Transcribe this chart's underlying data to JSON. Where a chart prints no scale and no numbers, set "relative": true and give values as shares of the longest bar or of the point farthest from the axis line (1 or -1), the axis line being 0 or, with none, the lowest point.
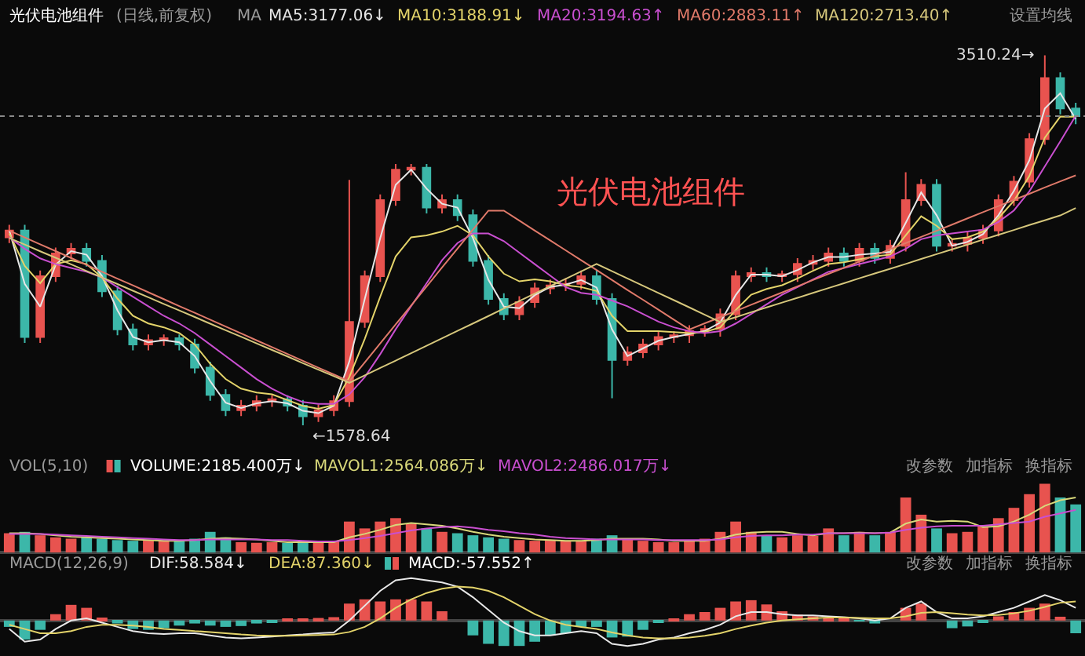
{
  "chart_data": [
    {
      "type": "candlestick",
      "title": "光伏电池组件",
      "tick_labels": false,
      "categories": [
        null,
        null,
        null,
        null,
        null,
        null,
        null,
        null,
        null,
        null,
        null,
        null,
        null,
        null,
        null,
        null,
        null,
        null,
        null,
        null,
        null,
        null,
        null,
        null,
        null,
        null,
        null,
        null,
        null,
        null,
        null,
        null,
        null,
        null,
        null,
        null,
        null,
        null,
        null,
        null,
        null,
        null,
        null,
        null,
        null,
        null,
        null,
        null,
        null,
        null,
        null,
        null,
        null,
        null,
        null,
        null,
        null,
        null,
        null,
        null,
        null,
        null,
        null,
        null,
        null,
        null,
        null,
        null,
        null,
        null
      ],
      "ohlc": [
        [
          2560,
          2625,
          2530,
          2595
        ],
        [
          2595,
          2625,
          2009,
          2039
        ],
        [
          2039,
          2387,
          2009,
          2357
        ],
        [
          2357,
          2506,
          2327,
          2476
        ],
        [
          2476,
          2530,
          2446,
          2500
        ],
        [
          2500,
          2530,
          2407,
          2437
        ],
        [
          2437,
          2467,
          2248,
          2278
        ],
        [
          2278,
          2308,
          2049,
          2079
        ],
        [
          2079,
          2109,
          1970,
          2000
        ],
        [
          2000,
          2053,
          1970,
          2023
        ],
        [
          2023,
          2053,
          1993,
          2033
        ],
        [
          2033,
          2053,
          1970,
          2000
        ],
        [
          2000,
          2030,
          1850,
          1880
        ],
        [
          1880,
          1910,
          1707,
          1737
        ],
        [
          1737,
          1767,
          1627,
          1657
        ],
        [
          1657,
          1711,
          1627,
          1681
        ],
        [
          1681,
          1735,
          1651,
          1705
        ],
        [
          1705,
          1735,
          1675,
          1715
        ],
        [
          1715,
          1735,
          1651,
          1681
        ],
        [
          1681,
          1711,
          1578.64,
          1626
        ],
        [
          1626,
          1687,
          1596,
          1657
        ],
        [
          1657,
          1735,
          1627,
          1705
        ],
        [
          1705,
          2860,
          1675,
          2118
        ],
        [
          2118,
          2387,
          2088,
          2357
        ],
        [
          2357,
          2784,
          2327,
          2754
        ],
        [
          2754,
          2943,
          2724,
          2913
        ],
        [
          2913,
          2943,
          2883,
          2923
        ],
        [
          2923,
          2943,
          2685,
          2715
        ],
        [
          2715,
          2784,
          2685,
          2754
        ],
        [
          2754,
          2784,
          2645,
          2675
        ],
        [
          2675,
          2705,
          2407,
          2437
        ],
        [
          2437,
          2467,
          2208,
          2238
        ],
        [
          2238,
          2268,
          2128,
          2158
        ],
        [
          2158,
          2252,
          2128,
          2222
        ],
        [
          2222,
          2323,
          2192,
          2293
        ],
        [
          2293,
          2339,
          2263,
          2309
        ],
        [
          2309,
          2347,
          2279,
          2317
        ],
        [
          2317,
          2387,
          2287,
          2357
        ],
        [
          2357,
          2387,
          2208,
          2238
        ],
        [
          2238,
          2268,
          1720,
          1920
        ],
        [
          1920,
          1990,
          1890,
          1960
        ],
        [
          1960,
          2030,
          1930,
          2000
        ],
        [
          2000,
          2069,
          1970,
          2039
        ],
        [
          2039,
          2069,
          2009,
          2049
        ],
        [
          2049,
          2101,
          2009,
          2071
        ],
        [
          2071,
          2101,
          2041,
          2081
        ],
        [
          2081,
          2188,
          2041,
          2158
        ],
        [
          2158,
          2387,
          2128,
          2357
        ],
        [
          2357,
          2403,
          2327,
          2373
        ],
        [
          2373,
          2403,
          2327,
          2357
        ],
        [
          2357,
          2387,
          2327,
          2367
        ],
        [
          2367,
          2451,
          2327,
          2421
        ],
        [
          2421,
          2467,
          2391,
          2437
        ],
        [
          2437,
          2506,
          2407,
          2476
        ],
        [
          2476,
          2506,
          2407,
          2437
        ],
        [
          2437,
          2530,
          2407,
          2500
        ],
        [
          2500,
          2530,
          2422,
          2452
        ],
        [
          2452,
          2546,
          2422,
          2516
        ],
        [
          2516,
          2900,
          2486,
          2754
        ],
        [
          2754,
          2864,
          2724,
          2834
        ],
        [
          2834,
          2864,
          2486,
          2516
        ],
        [
          2516,
          2546,
          2486,
          2526
        ],
        [
          2526,
          2586,
          2486,
          2556
        ],
        [
          2556,
          2625,
          2526,
          2595
        ],
        [
          2595,
          2784,
          2565,
          2754
        ],
        [
          2754,
          2880,
          2724,
          2850
        ],
        [
          2850,
          3103,
          2820,
          3073
        ],
        [
          3073,
          3510.24,
          3043,
          3391
        ],
        [
          3391,
          3421,
          3202,
          3232
        ],
        [
          3232,
          3262,
          3150,
          3192
        ]
      ],
      "colors": [
        "#e8534f",
        "#3cb7a9",
        "#e8534f",
        "#e8534f",
        "#e8534f",
        "#3cb7a9",
        "#3cb7a9",
        "#3cb7a9",
        "#3cb7a9",
        "#e8534f",
        "#e8534f",
        "#3cb7a9",
        "#3cb7a9",
        "#3cb7a9",
        "#3cb7a9",
        "#e8534f",
        "#e8534f",
        "#e8534f",
        "#3cb7a9",
        "#3cb7a9",
        "#e8534f",
        "#e8534f",
        "#e8534f",
        "#e8534f",
        "#e8534f",
        "#e8534f",
        "#e8534f",
        "#3cb7a9",
        "#e8534f",
        "#3cb7a9",
        "#3cb7a9",
        "#3cb7a9",
        "#3cb7a9",
        "#e8534f",
        "#e8534f",
        "#e8534f",
        "#e8534f",
        "#e8534f",
        "#3cb7a9",
        "#3cb7a9",
        "#e8534f",
        "#e8534f",
        "#e8534f",
        "#e8534f",
        "#e8534f",
        "#e8534f",
        "#e8534f",
        "#e8534f",
        "#e8534f",
        "#3cb7a9",
        "#e8534f",
        "#e8534f",
        "#e8534f",
        "#e8534f",
        "#3cb7a9",
        "#e8534f",
        "#3cb7a9",
        "#e8534f",
        "#e8534f",
        "#e8534f",
        "#3cb7a9",
        "#e8534f",
        "#e8534f",
        "#e8534f",
        "#e8534f",
        "#e8534f",
        "#e8534f",
        "#e8534f",
        "#3cb7a9",
        "#3cb7a9"
      ],
      "series": [
        {
          "type": "line",
          "name": "MA5:3177.06↓",
          "color": "#e6e6e6",
          "values": [
            2595,
            2317,
            2198,
            2417,
            2488,
            2469,
            2358,
            2179,
            2040,
            2012,
            2023,
            2012,
            1940,
            1809,
            1697,
            1669,
            1693,
            1705,
            1693,
            1654,
            1642,
            1681,
            1912,
            2238,
            2556,
            2834,
            2913,
            2814,
            2735,
            2715,
            2556,
            2338,
            2198,
            2190,
            2258,
            2301,
            2313,
            2337,
            2298,
            2079,
            1940,
            1980,
            2020,
            2039,
            2055,
            2071,
            2115,
            2258,
            2365,
            2365,
            2357,
            2389,
            2429,
            2457,
            2457,
            2469,
            2476,
            2484,
            2635,
            2794,
            2675,
            2516,
            2536,
            2576,
            2675,
            2802,
            2962,
            3232,
            3312,
            3177
          ]
        },
        {
          "type": "line",
          "name": "MA10:3188.91↓",
          "color": "#e3d36a",
          "values": [
            2580,
            2410,
            2320,
            2420,
            2440,
            2420,
            2350,
            2240,
            2150,
            2110,
            2090,
            2060,
            2000,
            1900,
            1820,
            1770,
            1750,
            1740,
            1710,
            1680,
            1665,
            1685,
            1830,
            2030,
            2250,
            2460,
            2560,
            2570,
            2590,
            2620,
            2570,
            2460,
            2370,
            2330,
            2340,
            2330,
            2310,
            2300,
            2280,
            2150,
            2070,
            2070,
            2070,
            2065,
            2060,
            2065,
            2090,
            2180,
            2260,
            2290,
            2310,
            2345,
            2385,
            2420,
            2430,
            2445,
            2460,
            2470,
            2570,
            2670,
            2620,
            2550,
            2560,
            2590,
            2660,
            2750,
            2880,
            3080,
            3190,
            3189
          ]
        },
        {
          "type": "line",
          "name": "MA20:3194.63↑",
          "color": "#c94fd0",
          "values": [
            2560,
            2500,
            2450,
            2420,
            2400,
            2380,
            2350,
            2300,
            2250,
            2200,
            2150,
            2110,
            2060,
            2000,
            1940,
            1880,
            1820,
            1770,
            1730,
            1700,
            1690,
            1690,
            1740,
            1830,
            1950,
            2080,
            2200,
            2320,
            2440,
            2530,
            2580,
            2580,
            2540,
            2480,
            2420,
            2360,
            2300,
            2270,
            2260,
            2230,
            2200,
            2160,
            2120,
            2090,
            2070,
            2060,
            2070,
            2110,
            2160,
            2210,
            2260,
            2300,
            2340,
            2380,
            2400,
            2420,
            2440,
            2460,
            2500,
            2550,
            2570,
            2580,
            2590,
            2600,
            2640,
            2700,
            2800,
            2930,
            3060,
            3194
          ]
        },
        {
          "type": "line",
          "name": "MA60:2883.11↑",
          "color": "#e07a6a",
          "values": [
            2595,
            2559,
            2523,
            2488,
            2452,
            2416,
            2380,
            2344,
            2309,
            2273,
            2237,
            2201,
            2166,
            2130,
            2094,
            2058,
            2022,
            1987,
            1951,
            1915,
            1879,
            1844,
            1808,
            1907,
            2006,
            2105,
            2204,
            2303,
            2402,
            2501,
            2600,
            2699,
            2699,
            2647,
            2595,
            2544,
            2492,
            2440,
            2389,
            2337,
            2285,
            2234,
            2182,
            2130,
            2079,
            2111,
            2143,
            2175,
            2208,
            2240,
            2272,
            2304,
            2337,
            2369,
            2401,
            2433,
            2465,
            2498,
            2530,
            2562,
            2594,
            2626,
            2659,
            2691,
            2723,
            2755,
            2787,
            2820,
            2852,
            2883
          ]
        },
        {
          "type": "line",
          "name": "MA120:2713.40↑",
          "color": "#d6c77c",
          "values": [
            2556,
            2522,
            2487,
            2453,
            2419,
            2384,
            2350,
            2316,
            2281,
            2247,
            2212,
            2178,
            2144,
            2109,
            2075,
            2041,
            2006,
            1972,
            1938,
            1903,
            1869,
            1835,
            1800,
            1839,
            1878,
            1916,
            1955,
            1994,
            2033,
            2072,
            2110,
            2149,
            2188,
            2227,
            2266,
            2305,
            2343,
            2382,
            2421,
            2383,
            2345,
            2307,
            2269,
            2232,
            2194,
            2156,
            2118,
            2143,
            2169,
            2194,
            2219,
            2244,
            2270,
            2295,
            2320,
            2346,
            2371,
            2396,
            2421,
            2447,
            2472,
            2497,
            2522,
            2548,
            2573,
            2598,
            2624,
            2649,
            2674,
            2713
          ]
        }
      ],
      "ref_lines": [
        {
          "axis": "y",
          "value": 3192,
          "line_style": "dotted",
          "color": "#8a8a8a"
        }
      ],
      "annotations": [
        "光伏电池组件",
        "(日线,前复权)",
        "MA",
        "设置均线",
        "3510.24→",
        "←1578.64"
      ]
    },
    {
      "type": "bar",
      "relative": true,
      "tick_labels": false,
      "categories": [
        null,
        null,
        null,
        null,
        null,
        null,
        null,
        null,
        null,
        null,
        null,
        null,
        null,
        null,
        null,
        null,
        null,
        null,
        null,
        null,
        null,
        null,
        null,
        null,
        null,
        null,
        null,
        null,
        null,
        null,
        null,
        null,
        null,
        null,
        null,
        null,
        null,
        null,
        null,
        null,
        null,
        null,
        null,
        null,
        null,
        null,
        null,
        null,
        null,
        null,
        null,
        null,
        null,
        null,
        null,
        null,
        null,
        null,
        null,
        null,
        null,
        null,
        null,
        null,
        null,
        null,
        null,
        null,
        null,
        null
      ],
      "series": [
        {
          "name": "VOLUME:2185.400万↓",
          "values": [
            0.28,
            0.3,
            0.25,
            0.22,
            0.2,
            0.22,
            0.2,
            0.18,
            0.17,
            0.18,
            0.17,
            0.16,
            0.2,
            0.3,
            0.22,
            0.15,
            0.14,
            0.15,
            0.14,
            0.16,
            0.15,
            0.17,
            0.45,
            0.35,
            0.45,
            0.5,
            0.42,
            0.35,
            0.3,
            0.28,
            0.25,
            0.22,
            0.2,
            0.18,
            0.17,
            0.18,
            0.16,
            0.17,
            0.2,
            0.25,
            0.2,
            0.17,
            0.15,
            0.15,
            0.18,
            0.2,
            0.3,
            0.45,
            0.3,
            0.25,
            0.22,
            0.25,
            0.24,
            0.35,
            0.25,
            0.3,
            0.25,
            0.3,
            0.8,
            0.55,
            0.35,
            0.28,
            0.3,
            0.38,
            0.5,
            0.65,
            0.85,
            1,
            0.8,
            0.7
          ],
          "colors": [
            "#e8534f",
            "#3cb7a9",
            "#e8534f",
            "#e8534f",
            "#e8534f",
            "#3cb7a9",
            "#3cb7a9",
            "#3cb7a9",
            "#3cb7a9",
            "#e8534f",
            "#e8534f",
            "#3cb7a9",
            "#3cb7a9",
            "#3cb7a9",
            "#3cb7a9",
            "#e8534f",
            "#e8534f",
            "#e8534f",
            "#3cb7a9",
            "#3cb7a9",
            "#e8534f",
            "#e8534f",
            "#e8534f",
            "#e8534f",
            "#e8534f",
            "#e8534f",
            "#e8534f",
            "#3cb7a9",
            "#e8534f",
            "#3cb7a9",
            "#3cb7a9",
            "#3cb7a9",
            "#3cb7a9",
            "#e8534f",
            "#e8534f",
            "#e8534f",
            "#e8534f",
            "#e8534f",
            "#3cb7a9",
            "#3cb7a9",
            "#e8534f",
            "#e8534f",
            "#e8534f",
            "#e8534f",
            "#e8534f",
            "#e8534f",
            "#e8534f",
            "#e8534f",
            "#e8534f",
            "#3cb7a9",
            "#e8534f",
            "#e8534f",
            "#e8534f",
            "#e8534f",
            "#3cb7a9",
            "#e8534f",
            "#3cb7a9",
            "#e8534f",
            "#e8534f",
            "#e8534f",
            "#3cb7a9",
            "#e8534f",
            "#e8534f",
            "#e8534f",
            "#e8534f",
            "#e8534f",
            "#e8534f",
            "#e8534f",
            "#3cb7a9",
            "#3cb7a9"
          ]
        },
        {
          "type": "line",
          "name": "MAVOL1:2564.086万↓",
          "color": "#d8d87a",
          "values": [
            0.28,
            0.28,
            0.27,
            0.25,
            0.23,
            0.22,
            0.21,
            0.2,
            0.19,
            0.18,
            0.17,
            0.17,
            0.18,
            0.2,
            0.21,
            0.2,
            0.19,
            0.17,
            0.15,
            0.15,
            0.15,
            0.15,
            0.22,
            0.27,
            0.33,
            0.4,
            0.43,
            0.41,
            0.39,
            0.35,
            0.3,
            0.26,
            0.23,
            0.21,
            0.19,
            0.18,
            0.17,
            0.17,
            0.18,
            0.2,
            0.2,
            0.2,
            0.19,
            0.17,
            0.17,
            0.17,
            0.2,
            0.26,
            0.29,
            0.3,
            0.3,
            0.27,
            0.25,
            0.28,
            0.28,
            0.29,
            0.28,
            0.29,
            0.42,
            0.48,
            0.45,
            0.46,
            0.45,
            0.37,
            0.38,
            0.45,
            0.55,
            0.68,
            0.76,
            0.8
          ]
        },
        {
          "type": "line",
          "name": "MAVOL2:2486.017万↓",
          "color": "#c94fd0",
          "values": [
            0.27,
            0.27,
            0.27,
            0.26,
            0.25,
            0.24,
            0.23,
            0.22,
            0.21,
            0.2,
            0.19,
            0.18,
            0.18,
            0.19,
            0.19,
            0.19,
            0.19,
            0.18,
            0.18,
            0.17,
            0.16,
            0.16,
            0.18,
            0.21,
            0.24,
            0.28,
            0.32,
            0.35,
            0.37,
            0.38,
            0.36,
            0.33,
            0.31,
            0.28,
            0.26,
            0.23,
            0.21,
            0.2,
            0.19,
            0.19,
            0.19,
            0.19,
            0.18,
            0.18,
            0.18,
            0.18,
            0.19,
            0.22,
            0.24,
            0.25,
            0.25,
            0.26,
            0.26,
            0.28,
            0.28,
            0.28,
            0.28,
            0.29,
            0.33,
            0.36,
            0.38,
            0.39,
            0.39,
            0.39,
            0.41,
            0.43,
            0.45,
            0.52,
            0.57,
            0.62
          ]
        }
      ],
      "annotations": [
        "VOL(5,10)",
        "改参数",
        "加指标",
        "换指标"
      ]
    },
    {
      "type": "bar",
      "relative": true,
      "tick_labels": false,
      "categories": [
        null,
        null,
        null,
        null,
        null,
        null,
        null,
        null,
        null,
        null,
        null,
        null,
        null,
        null,
        null,
        null,
        null,
        null,
        null,
        null,
        null,
        null,
        null,
        null,
        null,
        null,
        null,
        null,
        null,
        null,
        null,
        null,
        null,
        null,
        null,
        null,
        null,
        null,
        null,
        null,
        null,
        null,
        null,
        null,
        null,
        null,
        null,
        null,
        null,
        null,
        null,
        null,
        null,
        null,
        null,
        null,
        null,
        null,
        null,
        null,
        null,
        null,
        null,
        null,
        null,
        null,
        null,
        null,
        null,
        null
      ],
      "series": [
        {
          "type": "line",
          "name": "DIF:58.584↓",
          "color": "#e8e8e8",
          "values": [
            -0.2,
            -0.5,
            -0.45,
            -0.2,
            0,
            0.05,
            -0.05,
            -0.15,
            -0.25,
            -0.3,
            -0.32,
            -0.3,
            -0.3,
            -0.35,
            -0.4,
            -0.42,
            -0.4,
            -0.38,
            -0.35,
            -0.33,
            -0.3,
            -0.28,
            0,
            0.35,
            0.7,
            0.95,
            1,
            0.95,
            0.9,
            0.8,
            0.55,
            0.25,
            -0.05,
            -0.25,
            -0.35,
            -0.35,
            -0.3,
            -0.25,
            -0.3,
            -0.55,
            -0.6,
            -0.55,
            -0.45,
            -0.4,
            -0.3,
            -0.22,
            -0.1,
            0.1,
            0.2,
            0.2,
            0.15,
            0.12,
            0.12,
            0.1,
            0.08,
            0.05,
            0,
            0.05,
            0.3,
            0.45,
            0.2,
            0.05,
            0.05,
            0.1,
            0.2,
            0.3,
            0.45,
            0.6,
            0.48,
            0.3
          ]
        },
        {
          "type": "line",
          "name": "DEA:87.360↓",
          "color": "#e3d36a",
          "values": [
            -0.1,
            -0.2,
            -0.3,
            -0.3,
            -0.25,
            -0.15,
            -0.1,
            -0.1,
            -0.12,
            -0.15,
            -0.2,
            -0.22,
            -0.25,
            -0.27,
            -0.3,
            -0.33,
            -0.35,
            -0.36,
            -0.36,
            -0.35,
            -0.34,
            -0.33,
            -0.27,
            -0.15,
            0.05,
            0.3,
            0.5,
            0.65,
            0.75,
            0.8,
            0.78,
            0.7,
            0.55,
            0.35,
            0.15,
            0,
            -0.1,
            -0.15,
            -0.2,
            -0.28,
            -0.35,
            -0.4,
            -0.42,
            -0.42,
            -0.4,
            -0.36,
            -0.3,
            -0.2,
            -0.12,
            -0.05,
            0,
            0.03,
            0.05,
            0.07,
            0.07,
            0.06,
            0.05,
            0.05,
            0.1,
            0.18,
            0.2,
            0.17,
            0.14,
            0.12,
            0.13,
            0.17,
            0.23,
            0.32,
            0.42,
            0.45
          ]
        },
        {
          "name": "MACD:-57.552↑",
          "values": [
            -0.15,
            -0.45,
            -0.22,
            0.15,
            0.37,
            0.3,
            0.07,
            -0.07,
            -0.2,
            -0.22,
            -0.18,
            -0.12,
            -0.07,
            -0.12,
            -0.15,
            -0.13,
            -0.07,
            -0.03,
            0.02,
            0.03,
            0.06,
            0.08,
            0.4,
            0.5,
            0.45,
            0.5,
            0.5,
            0.45,
            0.22,
            0,
            -0.35,
            -0.55,
            -0.6,
            -0.6,
            -0.5,
            -0.35,
            -0.3,
            -0.15,
            -0.15,
            -0.4,
            -0.38,
            -0.22,
            -0.05,
            0.03,
            0.15,
            0.2,
            0.3,
            0.45,
            0.48,
            0.38,
            0.22,
            0.14,
            0.1,
            0.05,
            0.02,
            -0.02,
            -0.07,
            0,
            0.3,
            0.4,
            0,
            -0.18,
            -0.14,
            -0.03,
            0.1,
            0.2,
            0.3,
            0.4,
            0.09,
            -0.3
          ],
          "colors": [
            "#3cb7a9",
            "#3cb7a9",
            "#3cb7a9",
            "#e8534f",
            "#e8534f",
            "#e8534f",
            "#e8534f",
            "#3cb7a9",
            "#3cb7a9",
            "#3cb7a9",
            "#3cb7a9",
            "#3cb7a9",
            "#3cb7a9",
            "#3cb7a9",
            "#3cb7a9",
            "#3cb7a9",
            "#3cb7a9",
            "#3cb7a9",
            "#e8534f",
            "#e8534f",
            "#e8534f",
            "#e8534f",
            "#e8534f",
            "#e8534f",
            "#e8534f",
            "#e8534f",
            "#e8534f",
            "#e8534f",
            "#e8534f",
            "#e8534f",
            "#3cb7a9",
            "#3cb7a9",
            "#3cb7a9",
            "#3cb7a9",
            "#3cb7a9",
            "#3cb7a9",
            "#3cb7a9",
            "#3cb7a9",
            "#3cb7a9",
            "#3cb7a9",
            "#3cb7a9",
            "#3cb7a9",
            "#3cb7a9",
            "#e8534f",
            "#e8534f",
            "#e8534f",
            "#e8534f",
            "#e8534f",
            "#e8534f",
            "#e8534f",
            "#e8534f",
            "#e8534f",
            "#e8534f",
            "#e8534f",
            "#e8534f",
            "#3cb7a9",
            "#3cb7a9",
            "#e8534f",
            "#e8534f",
            "#e8534f",
            "#e8534f",
            "#3cb7a9",
            "#3cb7a9",
            "#3cb7a9",
            "#e8534f",
            "#e8534f",
            "#e8534f",
            "#e8534f",
            "#e8534f",
            "#3cb7a9"
          ]
        }
      ],
      "annotations": [
        "MACD(12,26,9)",
        "改参数",
        "加指标",
        "换指标"
      ]
    }
  ]
}
